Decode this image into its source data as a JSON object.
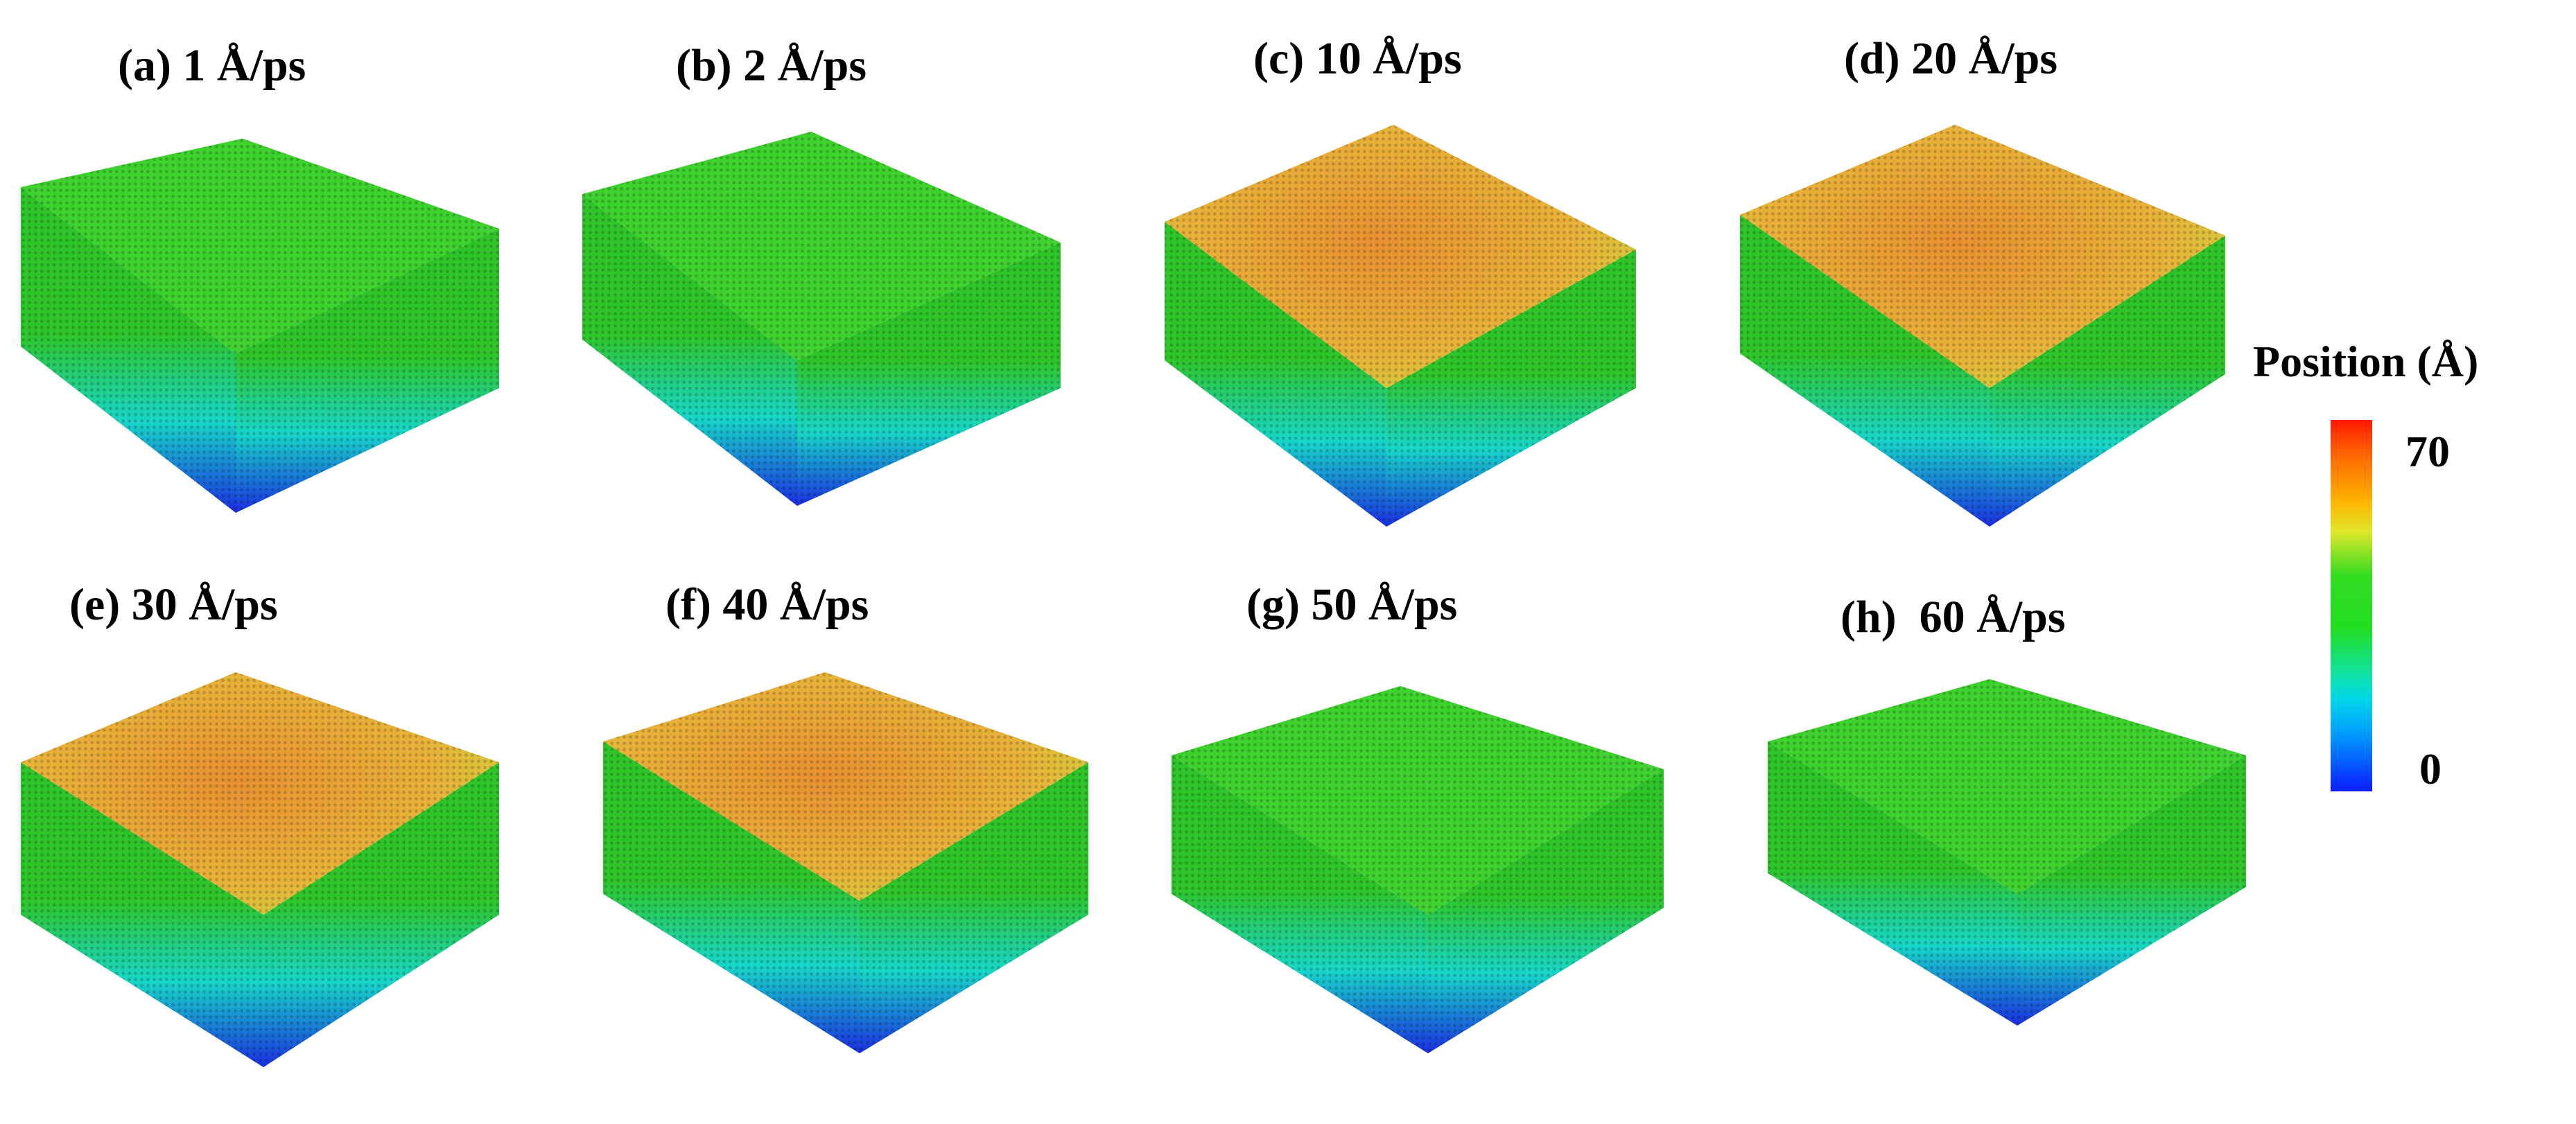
{
  "panels": [
    {
      "label": "(a) 1 Å/ps"
    },
    {
      "label": "(b) 2 Å/ps"
    },
    {
      "label": "(c) 10 Å/ps"
    },
    {
      "label": "(d) 20 Å/ps"
    },
    {
      "label": "(e) 30 Å/ps"
    },
    {
      "label": "(f) 40 Å/ps"
    },
    {
      "label": "(g) 50 Å/ps"
    },
    {
      "label": "(h)  60 Å/ps"
    }
  ],
  "colorbar": {
    "title": "Position (Å)",
    "max_label": "70",
    "min_label": "0",
    "min_value": 0,
    "max_value": 70,
    "colors": [
      "#ff1a00",
      "#ffb400",
      "#e0e62a",
      "#22dd22",
      "#00d8e8",
      "#0a1cff"
    ]
  },
  "colors": {
    "top_hot": "#e8b23a",
    "top_green": "#3fd12e",
    "side_green": "#2fc52a",
    "side_cyan": "#18d6c8",
    "side_blue": "#1a2ee0"
  }
}
